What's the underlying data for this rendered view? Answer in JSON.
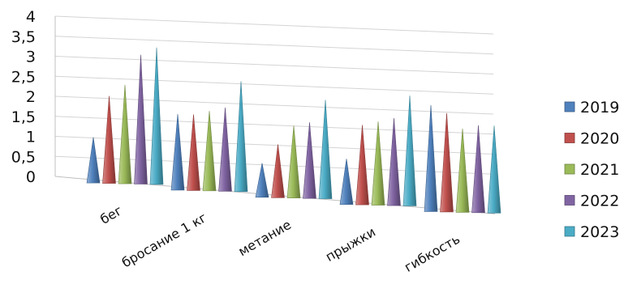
{
  "chart_data": {
    "type": "bar",
    "style": "3d-cone",
    "title": "",
    "xlabel": "",
    "ylabel": "",
    "ylim": [
      0,
      4
    ],
    "yticks": [
      "0",
      "0,5",
      "1",
      "1,5",
      "2",
      "2,5",
      "3",
      "3,5",
      "4"
    ],
    "grid": true,
    "legend_position": "right",
    "categories": [
      "бег",
      "бросание 1 кг",
      "метание",
      "прыжки",
      "гибкость"
    ],
    "series": [
      {
        "name": "2019",
        "color": "#4F81BD",
        "values": [
          1.2,
          2.0,
          0.9,
          1.2,
          2.8
        ]
      },
      {
        "name": "2020",
        "color": "#C0504D",
        "values": [
          2.3,
          2.0,
          1.4,
          2.1,
          2.6
        ]
      },
      {
        "name": "2021",
        "color": "#9BBB59",
        "values": [
          2.6,
          2.1,
          1.9,
          2.2,
          2.2
        ]
      },
      {
        "name": "2022",
        "color": "#8064A2",
        "values": [
          3.4,
          2.2,
          2.0,
          2.3,
          2.3
        ]
      },
      {
        "name": "2023",
        "color": "#4BACC6",
        "values": [
          3.6,
          2.9,
          2.6,
          2.9,
          2.3
        ]
      }
    ]
  }
}
